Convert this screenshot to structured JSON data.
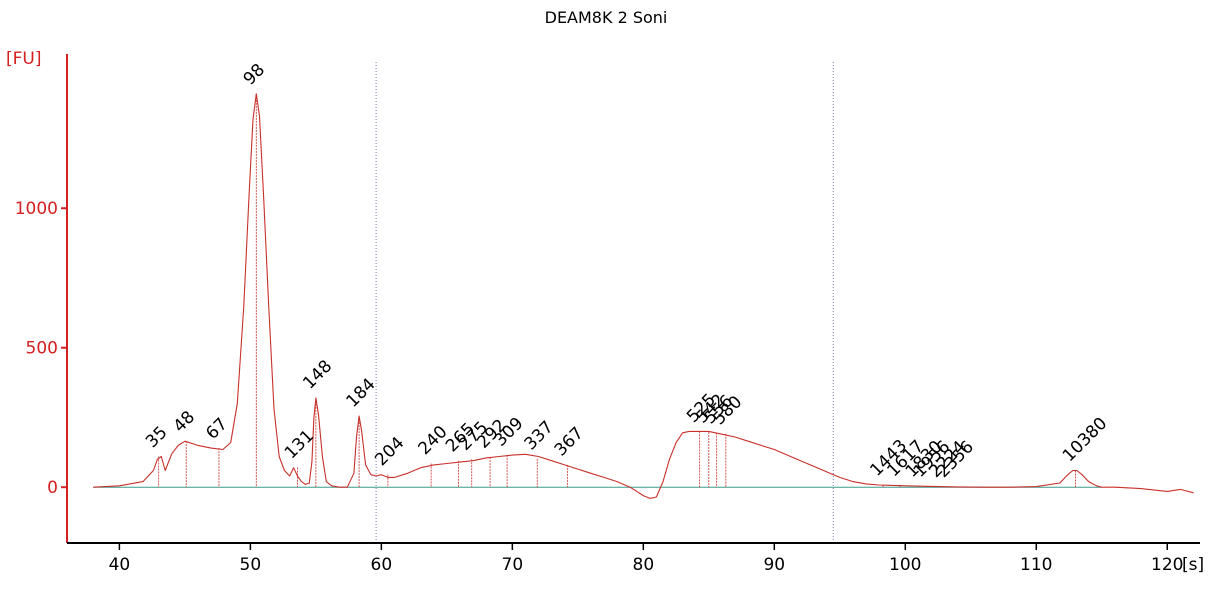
{
  "chart_data": {
    "type": "line",
    "title": "DEAM8K 2 Soni",
    "ylabel": "[FU]",
    "xlabel": "[s]",
    "xlim": [
      36,
      122.5
    ],
    "ylim": [
      -200,
      1560
    ],
    "x_ticks": [
      40,
      50,
      60,
      70,
      80,
      90,
      100,
      110,
      120
    ],
    "x_tick_labels": [
      "40",
      "50",
      "60",
      "70",
      "80",
      "90",
      "100",
      "110",
      "120"
    ],
    "y_ticks": [
      0,
      500,
      1000
    ],
    "y_tick_labels": [
      "0",
      "500",
      "1000"
    ],
    "grid": false,
    "region_markers_x": [
      59.6,
      94.5
    ],
    "baseline": {
      "x": [
        38,
        115
      ],
      "y": 0
    },
    "series": [
      {
        "x": [
          38,
          40,
          41.8,
          42.6,
          42.9,
          43.2,
          43.5,
          44,
          44.5,
          45,
          46,
          47,
          47.9,
          48.5,
          49,
          49.5,
          49.9,
          50.2,
          50.45,
          50.7,
          51,
          51.4,
          51.8,
          52.2,
          52.6,
          53.0,
          53.3,
          53.6,
          53.9,
          54.2,
          54.5,
          54.7,
          54.85,
          55.0,
          55.2,
          55.5,
          55.8,
          56.2,
          56.8,
          57.4,
          57.9,
          58.1,
          58.3,
          58.5,
          58.8,
          59.2,
          59.6,
          60.0,
          60.5,
          61,
          62,
          63,
          64,
          65,
          66,
          67,
          68,
          69,
          70,
          71,
          72,
          73,
          74,
          75,
          76,
          77,
          78,
          79,
          80,
          80.5,
          81,
          81.5,
          82,
          82.5,
          83,
          83.5,
          84,
          84.5,
          85,
          86,
          87,
          88,
          89,
          90,
          91,
          92,
          93,
          94,
          95,
          96,
          97,
          98,
          100,
          102,
          104,
          106,
          108,
          110,
          111.8,
          112.4,
          112.8,
          113.1,
          113.5,
          114,
          114.6,
          115,
          116,
          118,
          120,
          121,
          122
        ],
        "y": [
          0,
          5,
          20,
          60,
          100,
          110,
          60,
          120,
          150,
          165,
          150,
          140,
          135,
          160,
          300,
          650,
          1050,
          1320,
          1410,
          1330,
          1050,
          650,
          280,
          110,
          60,
          40,
          70,
          40,
          20,
          10,
          15,
          90,
          250,
          320,
          260,
          110,
          20,
          5,
          0,
          0,
          50,
          180,
          255,
          200,
          80,
          45,
          40,
          45,
          35,
          35,
          50,
          70,
          80,
          85,
          90,
          95,
          105,
          110,
          115,
          118,
          110,
          95,
          80,
          65,
          50,
          35,
          20,
          0,
          -30,
          -40,
          -35,
          20,
          100,
          160,
          195,
          200,
          200,
          200,
          200,
          190,
          180,
          165,
          150,
          135,
          115,
          95,
          75,
          55,
          35,
          20,
          12,
          8,
          5,
          3,
          1,
          0,
          0,
          2,
          15,
          45,
          60,
          60,
          45,
          20,
          5,
          0,
          0,
          -5,
          -15,
          -8,
          -20
        ]
      }
    ],
    "peak_labels": [
      {
        "text": "35",
        "x": 43.0,
        "y": 110,
        "color": "#218a21"
      },
      {
        "text": "48",
        "x": 45.1,
        "y": 165,
        "color": "#000000"
      },
      {
        "text": "67",
        "x": 47.6,
        "y": 140,
        "color": "#000000"
      },
      {
        "text": "98",
        "x": 50.45,
        "y": 1410,
        "color": "#000000"
      },
      {
        "text": "131",
        "x": 53.6,
        "y": 70,
        "color": "#000000"
      },
      {
        "text": "148",
        "x": 55.0,
        "y": 320,
        "color": "#000000"
      },
      {
        "text": "184",
        "x": 58.3,
        "y": 255,
        "color": "#000000"
      },
      {
        "text": "204",
        "x": 60.5,
        "y": 45,
        "color": "#000000"
      },
      {
        "text": "240",
        "x": 63.8,
        "y": 85,
        "color": "#000000"
      },
      {
        "text": "265",
        "x": 65.9,
        "y": 95,
        "color": "#000000"
      },
      {
        "text": "275",
        "x": 66.9,
        "y": 100,
        "color": "#000000"
      },
      {
        "text": "292",
        "x": 68.3,
        "y": 108,
        "color": "#000000"
      },
      {
        "text": "309",
        "x": 69.6,
        "y": 115,
        "color": "#000000"
      },
      {
        "text": "337",
        "x": 71.9,
        "y": 102,
        "color": "#000000"
      },
      {
        "text": "367",
        "x": 74.2,
        "y": 80,
        "color": "#000000"
      },
      {
        "text": "525",
        "x": 84.3,
        "y": 200,
        "color": "#000000"
      },
      {
        "text": "542",
        "x": 85.0,
        "y": 198,
        "color": "#000000"
      },
      {
        "text": "556",
        "x": 85.6,
        "y": 195,
        "color": "#000000"
      },
      {
        "text": "580",
        "x": 86.3,
        "y": 192,
        "color": "#000000"
      },
      {
        "text": "1443",
        "x": 98.3,
        "y": 8,
        "color": "#000000"
      },
      {
        "text": "1617",
        "x": 99.6,
        "y": 6,
        "color": "#000000"
      },
      {
        "text": "1830",
        "x": 101.0,
        "y": 4,
        "color": "#000000"
      },
      {
        "text": "1956",
        "x": 101.6,
        "y": 4,
        "color": "#000000"
      },
      {
        "text": "2224",
        "x": 102.8,
        "y": 3,
        "color": "#000000"
      },
      {
        "text": "2356",
        "x": 103.4,
        "y": 3,
        "color": "#000000"
      },
      {
        "text": "10380",
        "x": 113.0,
        "y": 60,
        "color": "#9b32db"
      }
    ],
    "colors": {
      "axis": "#d42020",
      "trace": "#c8302a",
      "baseline": "#3c9a8c",
      "marker": "#7c7cb8"
    }
  }
}
